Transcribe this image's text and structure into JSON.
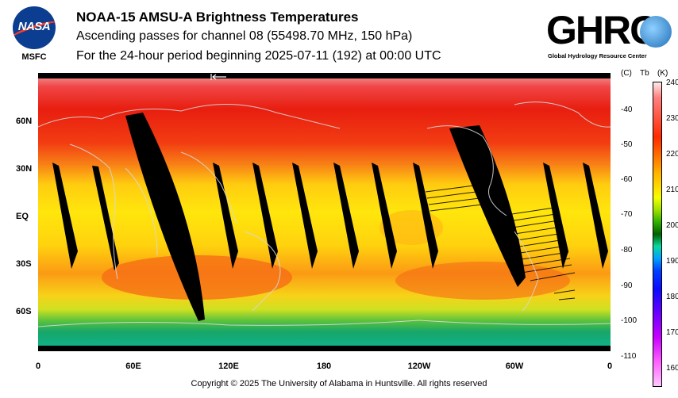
{
  "header": {
    "title": "NOAA-15 AMSU-A Brightness Temperatures",
    "subtitle_line1": "Ascending passes for channel 08 (55498.70 MHz, 150 hPa)",
    "subtitle_line2": "For the 24-hour period beginning 2025-07-11 (192) at 00:00 UTC"
  },
  "logos": {
    "nasa_word": "NASA",
    "nasa_center": "MSFC",
    "ghrc_word": "GHRC",
    "ghrc_full": "Global Hydrology Resource Center"
  },
  "map": {
    "x_ticks": [
      "0",
      "60E",
      "120E",
      "180",
      "120W",
      "60W",
      "0"
    ],
    "y_ticks": [
      "60N",
      "30N",
      "EQ",
      "30S",
      "60S"
    ]
  },
  "colorbar": {
    "unit_c": "(C)",
    "label": "Tb",
    "unit_k": "(K)",
    "celsius_ticks": [
      "-40",
      "-50",
      "-60",
      "-70",
      "-80",
      "-90",
      "-100",
      "-110"
    ],
    "kelvin_ticks": [
      "240",
      "230",
      "220",
      "210",
      "200",
      "190",
      "180",
      "170",
      "160"
    ],
    "kelvin_range": [
      155,
      240
    ]
  },
  "footer": {
    "copyright": "Copyright © 2025 The University of Alabama in Huntsville.  All rights reserved"
  }
}
